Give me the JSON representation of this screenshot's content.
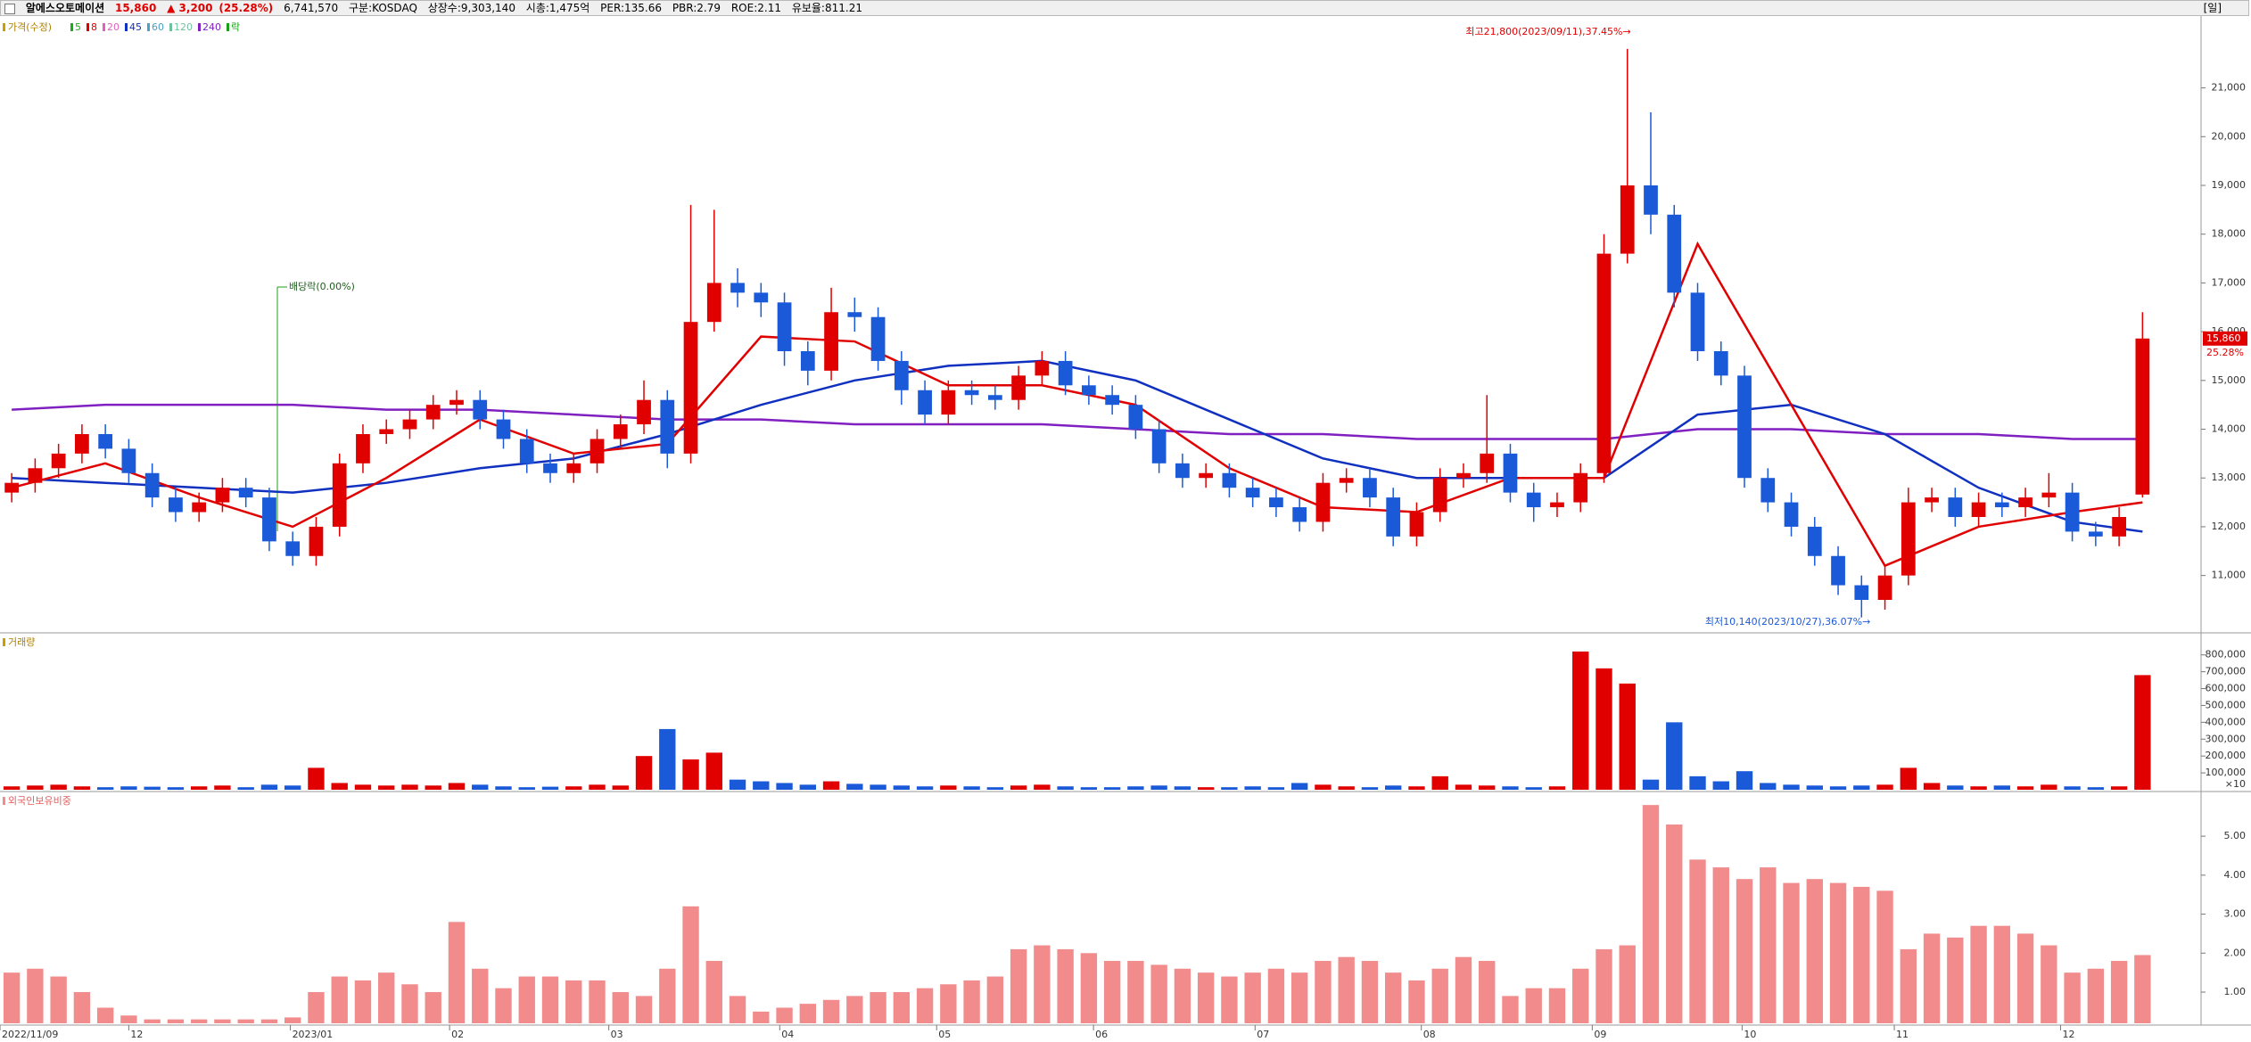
{
  "header": {
    "name": "알에스오토메이션",
    "price": "15,860",
    "change": "▲ 3,200",
    "change_pct": "(25.28%)",
    "volume": "6,741,570",
    "market": "구분:KOSDAQ",
    "shares": "상장수:9,303,140",
    "cap": "시총:1,475억",
    "per": "PER:135.66",
    "pbr": "PBR:2.79",
    "roe": "ROE:2.11",
    "reserve": "유보율:811.21",
    "period": "[일]"
  },
  "chart_data": [
    {
      "type": "candlestick",
      "title": "가격(수정)",
      "legend": [
        {
          "name": "5",
          "color": "#18b018"
        },
        {
          "name": "8",
          "color": "#e00000"
        },
        {
          "name": "20",
          "color": "#e060c0"
        },
        {
          "name": "45",
          "color": "#1030c0"
        },
        {
          "name": "60",
          "color": "#4aa0c8"
        },
        {
          "name": "120",
          "color": "#70c0a0"
        },
        {
          "name": "240",
          "color": "#8020c0"
        },
        {
          "name": "락",
          "color": "#18a018"
        }
      ],
      "up_color": "#e00000",
      "down_color": "#1a5ad8",
      "open": [
        12700,
        12900,
        13200,
        13500,
        13900,
        13600,
        13100,
        12600,
        12300,
        12500,
        12800,
        12600,
        11700,
        11400,
        12000,
        13300,
        13900,
        14000,
        14200,
        14500,
        14600,
        14200,
        13800,
        13300,
        13100,
        13300,
        13800,
        14100,
        14600,
        13500,
        16200,
        17000,
        16800,
        16600,
        15600,
        15200,
        16400,
        16300,
        15400,
        14800,
        14300,
        14800,
        14700,
        14600,
        15100,
        15400,
        14900,
        14700,
        14500,
        14000,
        13300,
        13000,
        13100,
        12800,
        12600,
        12400,
        12100,
        12900,
        13000,
        12600,
        11800,
        12300,
        13000,
        13100,
        13500,
        12700,
        12400,
        12500,
        13100,
        17600,
        19000,
        18400,
        16800,
        15600,
        15100,
        13000,
        12500,
        12000,
        11400,
        10800,
        10500,
        11000,
        12500,
        12600,
        12200,
        12500,
        12400,
        12600,
        12700,
        11900,
        11800,
        12660
      ],
      "high": [
        13100,
        13400,
        13700,
        14100,
        14100,
        13800,
        13300,
        12800,
        12700,
        13000,
        13000,
        12800,
        11900,
        12200,
        13500,
        14100,
        14200,
        14400,
        14700,
        14800,
        14800,
        14400,
        14000,
        13500,
        13500,
        14000,
        14300,
        15000,
        14800,
        18600,
        18500,
        17300,
        17000,
        16800,
        15800,
        16900,
        16700,
        16500,
        15600,
        15000,
        15000,
        15000,
        14900,
        15300,
        15600,
        15600,
        15100,
        14900,
        14700,
        14200,
        13500,
        13300,
        13300,
        13000,
        12800,
        12600,
        13100,
        13200,
        13200,
        12800,
        12500,
        13200,
        13300,
        14700,
        13700,
        12900,
        12700,
        13300,
        18000,
        21800,
        20500,
        18600,
        17000,
        15800,
        15300,
        13200,
        12700,
        12200,
        11600,
        11000,
        11200,
        12800,
        12800,
        12800,
        12700,
        12700,
        12800,
        13100,
        12900,
        12100,
        12400,
        16400
      ],
      "low": [
        12500,
        12700,
        13000,
        13300,
        13400,
        12900,
        12400,
        12100,
        12100,
        12300,
        12400,
        11500,
        11200,
        11200,
        11800,
        13100,
        13700,
        13800,
        14000,
        14300,
        14000,
        13600,
        13100,
        12900,
        12900,
        13100,
        13600,
        13900,
        13200,
        13300,
        16000,
        16500,
        16300,
        15300,
        14900,
        15000,
        16000,
        15200,
        14500,
        14100,
        14100,
        14500,
        14400,
        14400,
        14900,
        14700,
        14500,
        14300,
        13800,
        13100,
        12800,
        12800,
        12600,
        12400,
        12200,
        11900,
        11900,
        12700,
        12400,
        11600,
        11600,
        12100,
        12800,
        12900,
        12500,
        12100,
        12200,
        12300,
        12900,
        17400,
        18000,
        16500,
        15400,
        14900,
        12800,
        12300,
        11800,
        11200,
        10600,
        10140,
        10300,
        10800,
        12300,
        12000,
        12000,
        12200,
        12200,
        12400,
        11700,
        11600,
        11600,
        12600
      ],
      "close": [
        12900,
        13200,
        13500,
        13900,
        13600,
        13100,
        12600,
        12300,
        12500,
        12800,
        12600,
        11700,
        11400,
        12000,
        13300,
        13900,
        14000,
        14200,
        14500,
        14600,
        14200,
        13800,
        13300,
        13100,
        13300,
        13800,
        14100,
        14600,
        13500,
        16200,
        17000,
        16800,
        16600,
        15600,
        15200,
        16400,
        16300,
        15400,
        14800,
        14300,
        14800,
        14700,
        14600,
        15100,
        15400,
        14900,
        14700,
        14500,
        14000,
        13300,
        13000,
        13100,
        12800,
        12600,
        12400,
        12100,
        12900,
        13000,
        12600,
        11800,
        12300,
        13000,
        13100,
        13500,
        12700,
        12400,
        12500,
        13100,
        17600,
        19000,
        18400,
        16800,
        15600,
        15100,
        13000,
        12500,
        12000,
        11400,
        10800,
        10500,
        11000,
        12500,
        12600,
        12200,
        12500,
        12400,
        12600,
        12700,
        11900,
        11800,
        12200,
        15860
      ],
      "moving_averages": [
        {
          "color": "#8020c0",
          "x": [
            0,
            4,
            8,
            12,
            16,
            20,
            24,
            28,
            32,
            36,
            40,
            44,
            48,
            52,
            56,
            60,
            64,
            68,
            72,
            76,
            80,
            84,
            88,
            91
          ],
          "values": [
            14400,
            14500,
            14500,
            14500,
            14400,
            14400,
            14300,
            14200,
            14200,
            14100,
            14100,
            14100,
            14000,
            13900,
            13900,
            13800,
            13800,
            13800,
            14000,
            14000,
            13900,
            13900,
            13800,
            13800
          ]
        },
        {
          "color": "#1030c0",
          "x": [
            0,
            4,
            8,
            12,
            16,
            20,
            24,
            28,
            32,
            36,
            40,
            44,
            48,
            52,
            56,
            60,
            64,
            68,
            72,
            76,
            80,
            84,
            88,
            91
          ],
          "values": [
            13000,
            12900,
            12800,
            12700,
            12900,
            13200,
            13400,
            13900,
            14500,
            15000,
            15300,
            15400,
            15000,
            14200,
            13400,
            13000,
            13000,
            13000,
            14300,
            14500,
            13900,
            12800,
            12100,
            11900
          ]
        },
        {
          "color": "#e00000",
          "x": [
            0,
            4,
            8,
            12,
            16,
            20,
            24,
            28,
            32,
            36,
            40,
            44,
            48,
            52,
            56,
            60,
            64,
            68,
            72,
            76,
            80,
            84,
            88,
            91
          ],
          "values": [
            12800,
            13300,
            12600,
            12000,
            13000,
            14200,
            13500,
            13700,
            15900,
            15800,
            14900,
            14900,
            14500,
            13200,
            12400,
            12300,
            13000,
            13000,
            17800,
            14500,
            11200,
            12000,
            12300,
            12500
          ]
        }
      ],
      "annotations": {
        "high": "최고21,800(2023/09/11),37.45%→",
        "low": "최저10,140(2023/10/27),36.07%→",
        "dividend": "배당락(0.00%)"
      },
      "last_price": {
        "value": 15860,
        "label": "15,860"
      },
      "last_change_pct": "25.28%",
      "xlim": [
        0,
        94
      ],
      "xticks": [
        {
          "value": 0,
          "label": "2022/11/09"
        },
        {
          "value": 5.5,
          "label": "12"
        },
        {
          "value": 12.4,
          "label": "2023/01"
        },
        {
          "value": 19.2,
          "label": "02"
        },
        {
          "value": 26.0,
          "label": "03"
        },
        {
          "value": 33.3,
          "label": "04"
        },
        {
          "value": 40.0,
          "label": "05"
        },
        {
          "value": 46.7,
          "label": "06"
        },
        {
          "value": 53.6,
          "label": "07"
        },
        {
          "value": 60.7,
          "label": "08"
        },
        {
          "value": 68.0,
          "label": "09"
        },
        {
          "value": 74.4,
          "label": "10"
        },
        {
          "value": 80.9,
          "label": "11"
        },
        {
          "value": 88.0,
          "label": "12"
        }
      ],
      "ylim": [
        9860,
        22400
      ],
      "yticks": [
        {
          "value": 11000,
          "label": "11,000"
        },
        {
          "value": 12000,
          "label": "12,000"
        },
        {
          "value": 13000,
          "label": "13,000"
        },
        {
          "value": 14000,
          "label": "14,000"
        },
        {
          "value": 15000,
          "label": "15,000"
        },
        {
          "value": 16000,
          "label": "16,000"
        },
        {
          "value": 17000,
          "label": "17,000"
        },
        {
          "value": 18000,
          "label": "18,000"
        },
        {
          "value": 19000,
          "label": "19,000"
        },
        {
          "value": 20000,
          "label": "20,000"
        },
        {
          "value": 21000,
          "label": "21,000"
        }
      ]
    },
    {
      "type": "bar",
      "title": "거래량",
      "values": [
        20000,
        25000,
        30000,
        20000,
        15000,
        20000,
        18000,
        15000,
        20000,
        25000,
        15000,
        30000,
        25000,
        130000,
        40000,
        30000,
        25000,
        30000,
        25000,
        40000,
        30000,
        20000,
        15000,
        18000,
        20000,
        30000,
        25000,
        200000,
        360000,
        180000,
        220000,
        60000,
        50000,
        40000,
        30000,
        50000,
        35000,
        30000,
        25000,
        20000,
        25000,
        20000,
        15000,
        25000,
        30000,
        20000,
        15000,
        15000,
        20000,
        25000,
        20000,
        15000,
        15000,
        20000,
        15000,
        40000,
        30000,
        20000,
        15000,
        25000,
        20000,
        80000,
        30000,
        25000,
        20000,
        15000,
        20000,
        820000,
        720000,
        630000,
        60000,
        400000,
        80000,
        50000,
        110000,
        40000,
        30000,
        25000,
        20000,
        25000,
        30000,
        130000,
        40000,
        25000,
        20000,
        25000,
        20000,
        30000,
        20000,
        15000,
        20000,
        680000
      ],
      "ylim": [
        0,
        920000
      ],
      "unit_label": "×10",
      "yticks": [
        {
          "value": 100000,
          "label": "100,000"
        },
        {
          "value": 200000,
          "label": "200,000"
        },
        {
          "value": 300000,
          "label": "300,000"
        },
        {
          "value": 400000,
          "label": "400,000"
        },
        {
          "value": 500000,
          "label": "500,000"
        },
        {
          "value": 600000,
          "label": "600,000"
        },
        {
          "value": 700000,
          "label": "700,000"
        },
        {
          "value": 800000,
          "label": "800,000"
        }
      ]
    },
    {
      "type": "bar",
      "title": "외국인보유비중",
      "color": "#f28c8c",
      "values": [
        1.5,
        1.6,
        1.4,
        1.0,
        0.6,
        0.4,
        0.3,
        0.3,
        0.3,
        0.3,
        0.3,
        0.3,
        0.35,
        1.0,
        1.4,
        1.3,
        1.5,
        1.2,
        1.0,
        2.8,
        1.6,
        1.1,
        1.4,
        1.4,
        1.3,
        1.3,
        1.0,
        0.9,
        1.6,
        3.2,
        1.8,
        0.9,
        0.5,
        0.6,
        0.7,
        0.8,
        0.9,
        1.0,
        1.0,
        1.1,
        1.2,
        1.3,
        1.4,
        2.1,
        2.2,
        2.1,
        2.0,
        1.8,
        1.8,
        1.7,
        1.6,
        1.5,
        1.4,
        1.5,
        1.6,
        1.5,
        1.8,
        1.9,
        1.8,
        1.5,
        1.3,
        1.6,
        1.9,
        1.8,
        0.9,
        1.1,
        1.1,
        1.6,
        2.1,
        2.2,
        5.8,
        5.3,
        4.4,
        4.2,
        3.9,
        4.2,
        3.8,
        3.9,
        3.8,
        3.7,
        3.6,
        2.1,
        2.5,
        2.4,
        2.7,
        2.7,
        2.5,
        2.2,
        1.5,
        1.6,
        1.8,
        1.95
      ],
      "ylim": [
        0.2,
        6.1
      ],
      "yticks": [
        {
          "value": 1,
          "label": "1.00"
        },
        {
          "value": 2,
          "label": "2.00"
        },
        {
          "value": 3,
          "label": "3.00"
        },
        {
          "value": 4,
          "label": "4.00"
        },
        {
          "value": 5,
          "label": "5.00"
        }
      ]
    }
  ]
}
